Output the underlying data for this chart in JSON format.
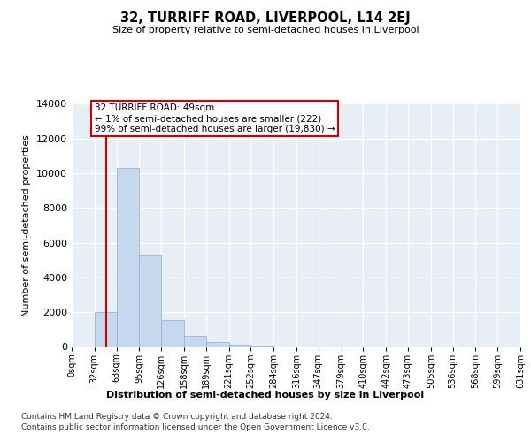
{
  "title": "32, TURRIFF ROAD, LIVERPOOL, L14 2EJ",
  "subtitle": "Size of property relative to semi-detached houses in Liverpool",
  "xlabel": "Distribution of semi-detached houses by size in Liverpool",
  "ylabel": "Number of semi-detached properties",
  "footer_line1": "Contains HM Land Registry data © Crown copyright and database right 2024.",
  "footer_line2": "Contains public sector information licensed under the Open Government Licence v3.0.",
  "property_label": "32 TURRIFF ROAD: 49sqm",
  "annotation_line1": "← 1% of semi-detached houses are smaller (222)",
  "annotation_line2": "99% of semi-detached houses are larger (19,830) →",
  "bar_edges": [
    0,
    32,
    63,
    95,
    126,
    158,
    189,
    221,
    252,
    284,
    316,
    347,
    379,
    410,
    442,
    473,
    505,
    536,
    568,
    599,
    631
  ],
  "bar_heights": [
    0,
    2000,
    10300,
    5250,
    1560,
    620,
    280,
    150,
    100,
    10,
    5,
    3,
    2,
    1,
    0,
    0,
    0,
    0,
    0,
    0
  ],
  "bar_color": "#c5d8ed",
  "bar_edge_color": "#9ab4d2",
  "vline_color": "#cc0000",
  "vline_x": 49,
  "annotation_box_edgecolor": "#cc0000",
  "ylim": [
    0,
    14000
  ],
  "yticks": [
    0,
    2000,
    4000,
    6000,
    8000,
    10000,
    12000,
    14000
  ],
  "background_color": "#ffffff",
  "plot_bg_color": "#e8eef5",
  "grid_color": "#ffffff"
}
